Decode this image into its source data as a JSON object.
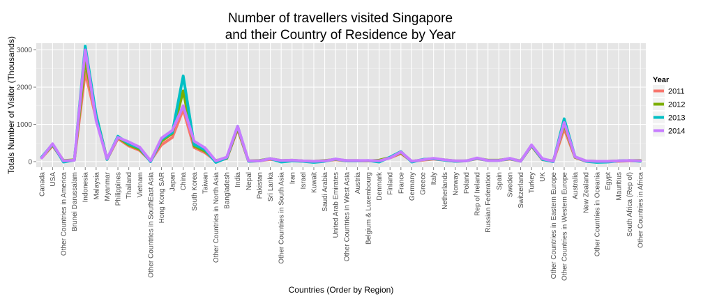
{
  "chart_data": {
    "type": "line",
    "title_line1": "Number of travellers visited Singapore",
    "title_line2": "and their Country of Residence by Year",
    "xlabel": "Countries (Order by Region)",
    "ylabel": "Totals Number of Visitor (Thousands)",
    "ylim": [
      -150,
      3180
    ],
    "yticks": [
      0,
      1000,
      2000,
      3000
    ],
    "grid": true,
    "legend_title": "Year",
    "legend_position": "right",
    "categories": [
      "Canada",
      "USA",
      "Other Countries in America",
      "Brunei Darussalam",
      "Indonesia",
      "Malaysia",
      "Myanmar",
      "Philippines",
      "Thailand",
      "Vietnam",
      "Other Countries in SouthEast Asia",
      "Hong Kong SAR",
      "Japan",
      "China",
      "South Korea",
      "Taiwan",
      "Other Countries in North Asia",
      "Bangladesh",
      "India",
      "Nepal",
      "Pakistan",
      "Sri Lanka",
      "Other Countries in South Asia",
      "Iran",
      "Israel",
      "Kuwait",
      "Saudi Arabia",
      "United Arab Emirates",
      "Other Countries in West Asia",
      "Austria",
      "Belgium & Luxembourg",
      "Denmark",
      "Finland",
      "France",
      "Germany",
      "Greece",
      "Italy",
      "Netherlands",
      "Norway",
      "Poland",
      "Rep of Ireland",
      "Russian Federation",
      "Spain",
      "Sweden",
      "Switzerland",
      "Turkey",
      "UK",
      "Other Countries in Eastern Europe",
      "Other Countries in Western Europe",
      "Australia",
      "New Zealand",
      "Other Countries in Oceania",
      "Egypt",
      "Mauritius",
      "South Africa (Rep of)",
      "Other Countries in Africa"
    ],
    "series": [
      {
        "name": "2011",
        "color": "#f8766d",
        "values": [
          100,
          430,
          20,
          40,
          2400,
          1150,
          60,
          620,
          420,
          300,
          20,
          450,
          650,
          1400,
          380,
          240,
          20,
          80,
          870,
          10,
          20,
          60,
          20,
          30,
          10,
          10,
          20,
          50,
          20,
          20,
          20,
          30,
          100,
          220,
          10,
          40,
          70,
          40,
          10,
          20,
          80,
          30,
          30,
          70,
          10,
          420,
          50,
          10,
          880,
          110,
          10,
          10,
          10,
          10,
          20,
          20
        ]
      },
      {
        "name": "2012",
        "color": "#7cae00",
        "values": [
          110,
          450,
          30,
          50,
          2700,
          1250,
          70,
          650,
          450,
          330,
          30,
          550,
          760,
          1900,
          420,
          280,
          30,
          90,
          900,
          20,
          30,
          80,
          30,
          40,
          20,
          10,
          30,
          60,
          30,
          30,
          20,
          40,
          110,
          240,
          10,
          50,
          80,
          50,
          20,
          20,
          90,
          40,
          40,
          80,
          20,
          430,
          60,
          20,
          1000,
          120,
          20,
          10,
          10,
          20,
          30,
          30
        ]
      },
      {
        "name": "2013",
        "color": "#00bfc4",
        "values": [
          120,
          470,
          -10,
          40,
          3100,
          1250,
          60,
          680,
          480,
          370,
          0,
          600,
          780,
          2300,
          460,
          320,
          -20,
          100,
          950,
          10,
          20,
          80,
          -10,
          20,
          10,
          -20,
          10,
          70,
          20,
          20,
          30,
          -10,
          120,
          270,
          -10,
          60,
          80,
          40,
          10,
          20,
          90,
          30,
          30,
          80,
          10,
          440,
          60,
          0,
          1150,
          130,
          10,
          -20,
          -10,
          20,
          30,
          10
        ]
      },
      {
        "name": "2014",
        "color": "#c77cff",
        "values": [
          100,
          480,
          20,
          40,
          3000,
          1100,
          80,
          650,
          530,
          390,
          20,
          630,
          840,
          1500,
          550,
          370,
          20,
          120,
          950,
          20,
          20,
          80,
          30,
          40,
          20,
          10,
          20,
          70,
          30,
          30,
          30,
          20,
          100,
          260,
          10,
          50,
          90,
          50,
          20,
          20,
          100,
          30,
          30,
          90,
          10,
          450,
          80,
          10,
          1050,
          130,
          20,
          10,
          10,
          20,
          30,
          20
        ]
      }
    ]
  }
}
